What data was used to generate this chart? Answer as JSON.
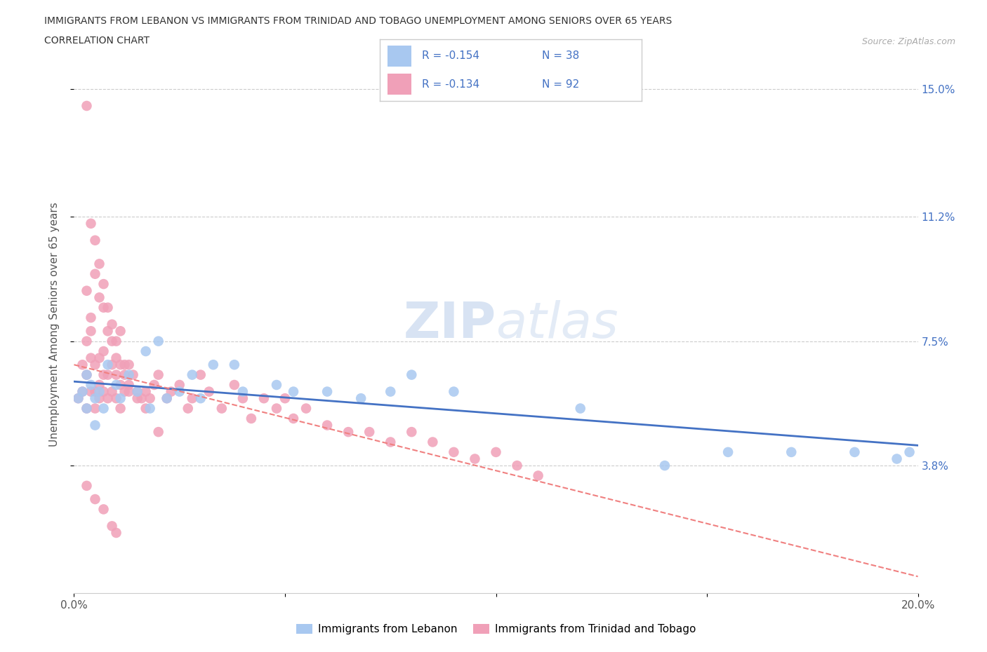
{
  "title_line1": "IMMIGRANTS FROM LEBANON VS IMMIGRANTS FROM TRINIDAD AND TOBAGO UNEMPLOYMENT AMONG SENIORS OVER 65 YEARS",
  "title_line2": "CORRELATION CHART",
  "source_text": "Source: ZipAtlas.com",
  "ylabel": "Unemployment Among Seniors over 65 years",
  "xlim": [
    0.0,
    0.2
  ],
  "ylim": [
    0.0,
    0.16
  ],
  "ytick_positions": [
    0.038,
    0.075,
    0.112,
    0.15
  ],
  "ytick_labels": [
    "3.8%",
    "7.5%",
    "11.2%",
    "15.0%"
  ],
  "hlines": [
    0.038,
    0.075,
    0.112,
    0.15
  ],
  "color_lebanon": "#a8c8f0",
  "color_trinidad": "#f0a0b8",
  "color_line_lebanon": "#4472c4",
  "color_line_trinidad": "#f08080",
  "lebanon_line_start_y": 0.063,
  "lebanon_line_end_y": 0.044,
  "trinidad_line_start_y": 0.068,
  "trinidad_line_end_y": 0.005,
  "lebanon_x": [
    0.001,
    0.002,
    0.003,
    0.003,
    0.004,
    0.005,
    0.005,
    0.006,
    0.007,
    0.008,
    0.01,
    0.011,
    0.013,
    0.015,
    0.017,
    0.018,
    0.02,
    0.022,
    0.025,
    0.028,
    0.03,
    0.033,
    0.038,
    0.04,
    0.048,
    0.052,
    0.06,
    0.068,
    0.075,
    0.08,
    0.09,
    0.12,
    0.14,
    0.155,
    0.17,
    0.185,
    0.195,
    0.198
  ],
  "lebanon_y": [
    0.058,
    0.06,
    0.065,
    0.055,
    0.062,
    0.058,
    0.05,
    0.06,
    0.055,
    0.068,
    0.062,
    0.058,
    0.065,
    0.06,
    0.072,
    0.055,
    0.075,
    0.058,
    0.06,
    0.065,
    0.058,
    0.068,
    0.068,
    0.06,
    0.062,
    0.06,
    0.06,
    0.058,
    0.06,
    0.065,
    0.06,
    0.055,
    0.038,
    0.042,
    0.042,
    0.042,
    0.04,
    0.042
  ],
  "trinidad_x": [
    0.001,
    0.002,
    0.002,
    0.003,
    0.003,
    0.003,
    0.004,
    0.004,
    0.004,
    0.005,
    0.005,
    0.005,
    0.006,
    0.006,
    0.006,
    0.007,
    0.007,
    0.007,
    0.008,
    0.008,
    0.009,
    0.009,
    0.01,
    0.01,
    0.011,
    0.011,
    0.012,
    0.013,
    0.013,
    0.014,
    0.015,
    0.016,
    0.017,
    0.018,
    0.019,
    0.02,
    0.022,
    0.023,
    0.025,
    0.027,
    0.028,
    0.03,
    0.032,
    0.035,
    0.038,
    0.04,
    0.042,
    0.045,
    0.048,
    0.05,
    0.052,
    0.055,
    0.06,
    0.065,
    0.07,
    0.075,
    0.08,
    0.085,
    0.09,
    0.095,
    0.1,
    0.105,
    0.11,
    0.003,
    0.004,
    0.005,
    0.006,
    0.007,
    0.008,
    0.009,
    0.01,
    0.011,
    0.012,
    0.003,
    0.004,
    0.005,
    0.006,
    0.007,
    0.008,
    0.009,
    0.01,
    0.011,
    0.012,
    0.013,
    0.015,
    0.017,
    0.02,
    0.003,
    0.005,
    0.007,
    0.009,
    0.01
  ],
  "trinidad_y": [
    0.058,
    0.068,
    0.06,
    0.055,
    0.065,
    0.075,
    0.06,
    0.07,
    0.078,
    0.06,
    0.068,
    0.055,
    0.062,
    0.07,
    0.058,
    0.065,
    0.072,
    0.06,
    0.065,
    0.058,
    0.06,
    0.068,
    0.065,
    0.058,
    0.062,
    0.055,
    0.06,
    0.068,
    0.06,
    0.065,
    0.06,
    0.058,
    0.06,
    0.058,
    0.062,
    0.065,
    0.058,
    0.06,
    0.062,
    0.055,
    0.058,
    0.065,
    0.06,
    0.055,
    0.062,
    0.058,
    0.052,
    0.058,
    0.055,
    0.058,
    0.052,
    0.055,
    0.05,
    0.048,
    0.048,
    0.045,
    0.048,
    0.045,
    0.042,
    0.04,
    0.042,
    0.038,
    0.035,
    0.09,
    0.082,
    0.095,
    0.088,
    0.085,
    0.078,
    0.075,
    0.07,
    0.078,
    0.068,
    0.145,
    0.11,
    0.105,
    0.098,
    0.092,
    0.085,
    0.08,
    0.075,
    0.068,
    0.065,
    0.062,
    0.058,
    0.055,
    0.048,
    0.032,
    0.028,
    0.025,
    0.02,
    0.018
  ]
}
